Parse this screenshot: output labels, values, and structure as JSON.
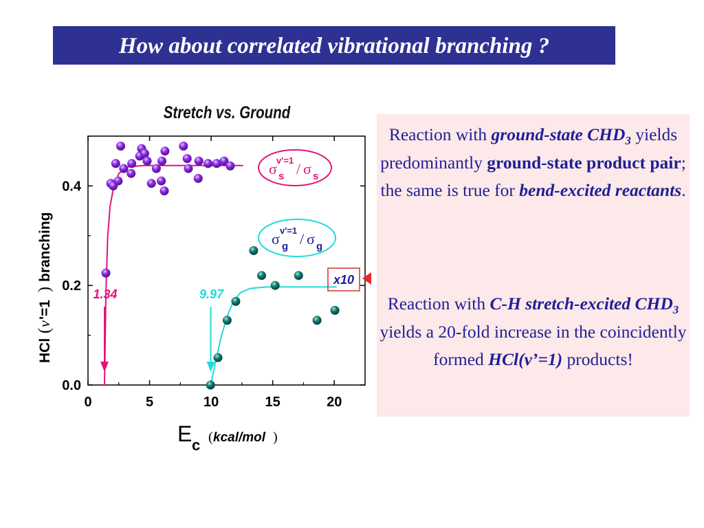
{
  "title": "How about correlated vibrational branching ?",
  "note": {
    "p1": [
      {
        "t": "Reaction with ",
        "s": "n"
      },
      {
        "t": "ground-state CHD",
        "s": "bi"
      },
      {
        "t": "3",
        "s": "bisub"
      },
      {
        "t": " yields predominantly ",
        "s": "n"
      },
      {
        "t": "ground-state product pair",
        "s": "b"
      },
      {
        "t": "; the same is true for ",
        "s": "n"
      },
      {
        "t": "bend-excited reactants",
        "s": "bi"
      },
      {
        "t": ".",
        "s": "n"
      }
    ],
    "p2": [
      {
        "t": "Reaction with ",
        "s": "n"
      },
      {
        "t": "C-H stretch-excited CHD",
        "s": "bi"
      },
      {
        "t": "3",
        "s": "bisub"
      },
      {
        "t": " yields a 20-fold increase in the coincidently formed ",
        "s": "n"
      },
      {
        "t": "HCl(v’=1)",
        "s": "bi"
      },
      {
        "t": " products!",
        "s": "n"
      }
    ]
  },
  "chart_data": {
    "type": "scatter",
    "title": "Stretch vs. Ground",
    "xlabel": {
      "main": "E",
      "sub": "c",
      "unit": "kcal/mol"
    },
    "ylabel": {
      "prefix": "HCl",
      "nu": "v",
      "suffix": "'=1",
      "tail": "branching"
    },
    "xlim": [
      0,
      22.5
    ],
    "ylim": [
      0,
      0.5
    ],
    "xticks": [
      0,
      5,
      10,
      15,
      20
    ],
    "xtick_labels": [
      "0",
      "5",
      "10",
      "15",
      "20"
    ],
    "yticks": [
      0.0,
      0.2,
      0.4
    ],
    "ytick_labels": [
      "0.0",
      "0.2",
      "0.4"
    ],
    "colors": {
      "stretch": "#e2127a",
      "ground": "#23d9d9",
      "points_s": "#8b2be2",
      "points_g": "#127a6e",
      "arrow": "#e8282a",
      "label_box": "#d8302a",
      "title": "#111111"
    },
    "series": [
      {
        "name": "s",
        "points": [
          [
            1.45,
            0.225
          ],
          [
            1.85,
            0.405
          ],
          [
            2.05,
            0.4
          ],
          [
            2.25,
            0.445
          ],
          [
            2.45,
            0.41
          ],
          [
            2.65,
            0.48
          ],
          [
            2.9,
            0.435
          ],
          [
            3.5,
            0.425
          ],
          [
            3.55,
            0.445
          ],
          [
            4.2,
            0.46
          ],
          [
            4.35,
            0.475
          ],
          [
            4.6,
            0.465
          ],
          [
            4.8,
            0.45
          ],
          [
            5.15,
            0.405
          ],
          [
            5.55,
            0.435
          ],
          [
            5.95,
            0.41
          ],
          [
            6.0,
            0.45
          ],
          [
            6.2,
            0.39
          ],
          [
            6.25,
            0.47
          ],
          [
            7.75,
            0.48
          ],
          [
            8.05,
            0.455
          ],
          [
            8.15,
            0.435
          ],
          [
            8.95,
            0.415
          ],
          [
            9.0,
            0.45
          ],
          [
            9.75,
            0.445
          ],
          [
            10.45,
            0.445
          ],
          [
            11.05,
            0.45
          ],
          [
            11.55,
            0.44
          ]
        ],
        "curve": [
          [
            1.34,
            0.0
          ],
          [
            1.45,
            0.18
          ],
          [
            1.6,
            0.3
          ],
          [
            1.8,
            0.36
          ],
          [
            2.1,
            0.4
          ],
          [
            2.5,
            0.425
          ],
          [
            3.2,
            0.438
          ],
          [
            4.5,
            0.441
          ],
          [
            12.6,
            0.441
          ]
        ]
      },
      {
        "name": "g",
        "points": [
          [
            9.95,
            0.0
          ],
          [
            10.55,
            0.055
          ],
          [
            11.3,
            0.13
          ],
          [
            12.0,
            0.168
          ],
          [
            13.45,
            0.27
          ],
          [
            14.1,
            0.22
          ],
          [
            15.2,
            0.2
          ],
          [
            17.1,
            0.22
          ],
          [
            18.6,
            0.13
          ],
          [
            20.05,
            0.15
          ]
        ],
        "curve": [
          [
            9.97,
            0.0
          ],
          [
            10.3,
            0.04
          ],
          [
            10.8,
            0.095
          ],
          [
            11.3,
            0.138
          ],
          [
            11.8,
            0.168
          ],
          [
            12.4,
            0.186
          ],
          [
            13.2,
            0.194
          ],
          [
            14.5,
            0.197
          ],
          [
            20.2,
            0.197
          ]
        ]
      }
    ],
    "annotations": {
      "threshold_s": "1.34",
      "threshold_g": "9.97",
      "threshold_s_x": 1.34,
      "threshold_g_x": 9.97,
      "scale_label": "x10",
      "legend_s": {
        "sigma": "σ",
        "sup": "v'=1",
        "sub": "s"
      },
      "legend_g": {
        "sigma": "σ",
        "sup": "v'=1",
        "sub": "g"
      }
    }
  }
}
